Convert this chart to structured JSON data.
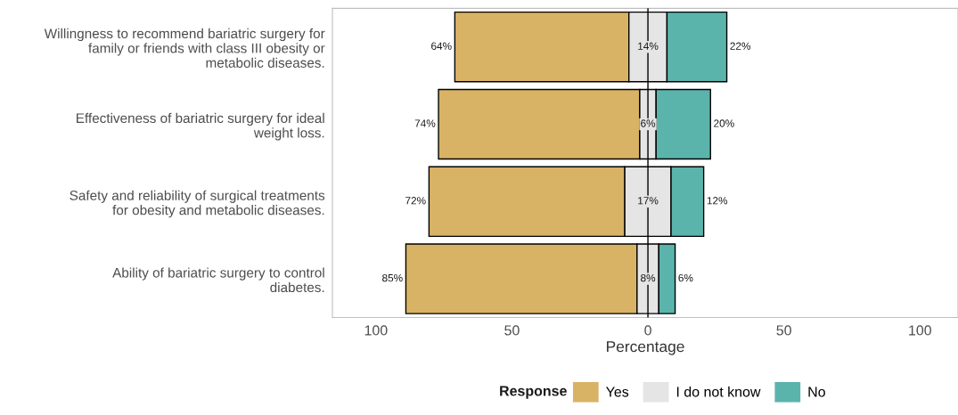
{
  "chart_data": {
    "type": "bar",
    "orientation": "horizontal",
    "xlabel": "Percentage",
    "legend_title": "Response",
    "legend": "bottom",
    "grid": false,
    "categories": [
      "Willingness to recommend bariatric surgery for family or friends with class III obesity or metabolic diseases.",
      "Effectiveness of bariatric surgery for ideal weight loss.",
      "Safety and reliability of surgical treatments for obesity and metabolic diseases.",
      "Ability of bariatric surgery to control diabetes."
    ],
    "series": [
      {
        "name": "Yes",
        "color": "#d8b365",
        "values": [
          64,
          74,
          72,
          85
        ],
        "base": [
          -71,
          -77,
          -80.5,
          -89
        ],
        "value_labels": [
          "64%",
          "74%",
          "72%",
          "85%"
        ]
      },
      {
        "name": "I do not know",
        "color": "#e5e5e5",
        "values": [
          14,
          6,
          17,
          8
        ],
        "base": [
          -7,
          -3,
          -8.5,
          -4
        ],
        "value_labels": [
          "14%",
          "6%",
          "17%",
          "8%"
        ]
      },
      {
        "name": "No",
        "color": "#5ab4ac",
        "values": [
          22,
          20,
          12,
          6
        ],
        "base": [
          7,
          3,
          8.5,
          4
        ],
        "value_labels": [
          "22%",
          "20%",
          "12%",
          "6%"
        ]
      }
    ],
    "xlim": [
      -116,
      114
    ],
    "xticks": [
      {
        "value": -100,
        "label": "100"
      },
      {
        "value": -50,
        "label": "50"
      },
      0,
      50,
      100
    ],
    "ref_lines": [
      {
        "axis": "x",
        "value": 0,
        "color": "#000000"
      }
    ]
  }
}
